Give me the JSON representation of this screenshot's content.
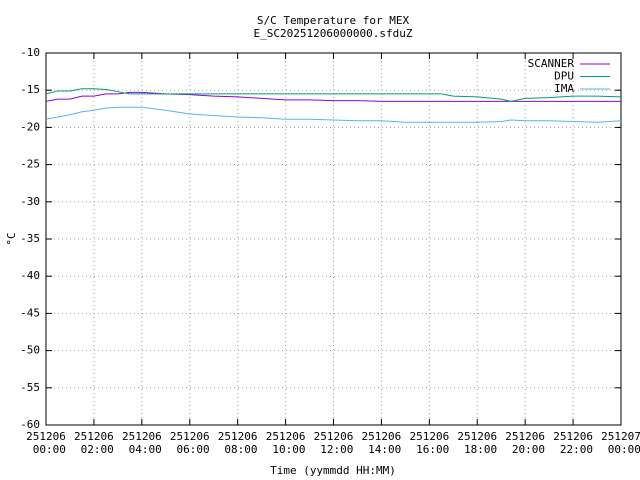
{
  "chart_data": {
    "type": "line",
    "title": "S/C Temperature for MEX",
    "subtitle": "E_SC20251206000000.sfduZ",
    "x_label": "Time (yymmdd HH:MM)",
    "y_label": "°C",
    "xlim": [
      0,
      24
    ],
    "xticks": [
      {
        "value": 0,
        "label": "251206 00:00"
      },
      {
        "value": 2,
        "label": "251206 02:00"
      },
      {
        "value": 4,
        "label": "251206 04:00"
      },
      {
        "value": 6,
        "label": "251206 06:00"
      },
      {
        "value": 8,
        "label": "251206 08:00"
      },
      {
        "value": 10,
        "label": "251206 10:00"
      },
      {
        "value": 12,
        "label": "251206 12:00"
      },
      {
        "value": 14,
        "label": "251206 14:00"
      },
      {
        "value": 16,
        "label": "251206 16:00"
      },
      {
        "value": 18,
        "label": "251206 18:00"
      },
      {
        "value": 20,
        "label": "251206 20:00"
      },
      {
        "value": 22,
        "label": "251206 22:00"
      },
      {
        "value": 24,
        "label": "251207 00:00"
      }
    ],
    "ylim": [
      -60,
      -10
    ],
    "yticks": [
      -60,
      -55,
      -50,
      -45,
      -40,
      -35,
      -30,
      -25,
      -20,
      -15,
      -10
    ],
    "grid": true,
    "legend": "top-right",
    "x": [
      0,
      0.5,
      1,
      1.5,
      2,
      2.5,
      3,
      3.5,
      4,
      5,
      6,
      7,
      8,
      9,
      10,
      11,
      12,
      13,
      14,
      15,
      16,
      16.5,
      17,
      18,
      19,
      19.4,
      20,
      21,
      22,
      23,
      24
    ],
    "series": [
      {
        "name": "SCANNER",
        "color": "#9400d3",
        "values": [
          -16.5,
          -16.2,
          -16.2,
          -15.8,
          -15.8,
          -15.5,
          -15.5,
          -15.3,
          -15.3,
          -15.5,
          -15.6,
          -15.8,
          -15.9,
          -16.1,
          -16.3,
          -16.3,
          -16.4,
          -16.4,
          -16.5,
          -16.5,
          -16.5,
          -16.5,
          -16.5,
          -16.5,
          -16.5,
          -16.5,
          -16.5,
          -16.5,
          -16.5,
          -16.5,
          -16.5
        ]
      },
      {
        "name": "DPU",
        "color": "#009e73",
        "values": [
          -15.5,
          -15.1,
          -15.1,
          -14.8,
          -14.8,
          -14.9,
          -15.2,
          -15.5,
          -15.5,
          -15.5,
          -15.5,
          -15.5,
          -15.5,
          -15.5,
          -15.5,
          -15.5,
          -15.5,
          -15.5,
          -15.5,
          -15.5,
          -15.5,
          -15.5,
          -15.8,
          -15.9,
          -16.2,
          -16.5,
          -16.1,
          -16.0,
          -15.8,
          -15.8,
          -15.9
        ]
      },
      {
        "name": "IMA",
        "color": "#56b4e9",
        "values": [
          -18.9,
          -18.6,
          -18.3,
          -17.9,
          -17.7,
          -17.4,
          -17.3,
          -17.3,
          -17.3,
          -17.7,
          -18.2,
          -18.4,
          -18.6,
          -18.7,
          -18.9,
          -18.9,
          -19.0,
          -19.1,
          -19.1,
          -19.3,
          -19.3,
          -19.3,
          -19.3,
          -19.3,
          -19.2,
          -19.0,
          -19.1,
          -19.1,
          -19.2,
          -19.3,
          -19.1
        ]
      }
    ]
  }
}
